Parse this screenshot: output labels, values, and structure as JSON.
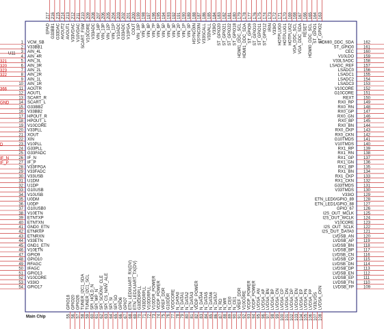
{
  "refdes": "U11",
  "part": "Main Chip",
  "pins": {
    "left": [
      [
        1,
        "VCM_SB"
      ],
      [
        2,
        "V33BB1"
      ],
      [
        3,
        "AIN_4L"
      ],
      [
        4,
        "AIN_4R"
      ],
      [
        5,
        "AIN_3L"
      ],
      [
        6,
        "AIN_3R"
      ],
      [
        7,
        "AIN_2L"
      ],
      [
        8,
        "AIN_2R"
      ],
      [
        9,
        "AIN_1L"
      ],
      [
        10,
        "AIN_1R"
      ],
      [
        11,
        "AOUTR"
      ],
      [
        12,
        "AOUTL"
      ],
      [
        13,
        "SCART_R"
      ],
      [
        14,
        "SCART_L"
      ],
      [
        15,
        "G33BB2"
      ],
      [
        16,
        "V33BB2"
      ],
      [
        17,
        "HPOUT_R"
      ],
      [
        18,
        "HPOUT_L"
      ],
      [
        19,
        "V10CORE"
      ],
      [
        20,
        "V33PLL"
      ],
      [
        21,
        "XOUT"
      ],
      [
        22,
        "XIN"
      ],
      [
        23,
        "V10PLL"
      ],
      [
        24,
        "G33PLL"
      ],
      [
        25,
        "G33FADC"
      ],
      [
        26,
        "IF_N"
      ],
      [
        27,
        "IF_P"
      ],
      [
        28,
        "V33FPGA"
      ],
      [
        29,
        "V33FADC"
      ],
      [
        30,
        "V33USB"
      ],
      [
        31,
        "U1DM"
      ],
      [
        32,
        "U1DP"
      ],
      [
        33,
        "G10USB"
      ],
      [
        34,
        "V10USB"
      ],
      [
        35,
        "U0DM"
      ],
      [
        36,
        "U0DP"
      ],
      [
        37,
        "G10USB0"
      ],
      [
        38,
        "V10ETN"
      ],
      [
        39,
        "ETNTXP"
      ],
      [
        40,
        "ETNTXN"
      ],
      [
        41,
        "GND0_ETN"
      ],
      [
        42,
        "ETNRXP"
      ],
      [
        43,
        "ETNRXN"
      ],
      [
        44,
        "V33ETN"
      ],
      [
        45,
        "GND1_ETN"
      ],
      [
        46,
        "V10ETN"
      ],
      [
        47,
        "GPIO9"
      ],
      [
        48,
        "GPIO10"
      ],
      [
        49,
        "RFAGC"
      ],
      [
        50,
        "IFAGC"
      ],
      [
        51,
        "GPIO13"
      ],
      [
        52,
        "V10CORE"
      ],
      [
        53,
        "V33IO"
      ],
      [
        54,
        "GPIO17"
      ]
    ],
    "bottom": [
      [
        55,
        "GPIO18"
      ],
      [
        56,
        "GPIO20"
      ],
      [
        57,
        "GPIO26"
      ],
      [
        58,
        "TUNER_I2C1_SDA"
      ],
      [
        59,
        "TUNER_I2C1_SCL"
      ],
      [
        60,
        "SPI_HOLD_N"
      ],
      [
        61,
        "SPI_WP_N"
      ],
      [
        62,
        "SPI_SCK/NV_CLE"
      ],
      [
        63,
        "SPI_CS_N/NV_ALE"
      ],
      [
        64,
        "SPI_SI"
      ],
      [
        65,
        "SPI_SO"
      ],
      [
        66,
        "GPIO6"
      ],
      [
        67,
        "GPIO7"
      ],
      [
        68,
        "ETN_LED0/UART_RX(DV)"
      ],
      [
        69,
        "ETN_LED1/UART_TX(DV)"
      ],
      [
        70,
        "G33DDRPLL"
      ],
      [
        71,
        "V33DDRPLL"
      ],
      [
        72,
        "V10DDRPLL"
      ],
      [
        73,
        "V10DDR_POWER"
      ],
      [
        74,
        "VDDP_POWER"
      ],
      [
        75,
        "VREF_DDR"
      ],
      [
        76,
        "G10DDR"
      ],
      [
        77,
        "VDDCORE"
      ],
      [
        78,
        "N_DATA0"
      ],
      [
        79,
        "N_DATA1"
      ],
      [
        80,
        "N_DATA2"
      ],
      [
        81,
        "N_DATA3"
      ],
      [
        82,
        "VDDP_POWER"
      ],
      [
        83,
        "N_DATA4"
      ],
      [
        84,
        "N_DATA5"
      ],
      [
        85,
        "N_DATA6"
      ],
      [
        86,
        "N_DATA7"
      ],
      [
        87,
        "N_RD"
      ],
      [
        88,
        "N_WR"
      ],
      [
        89,
        "N_CE0"
      ],
      [
        90,
        "N_CE1"
      ],
      [
        91,
        "VREF_DDR"
      ],
      [
        92,
        "V10CORE"
      ],
      [
        93,
        "VDDP_POWER"
      ],
      [
        94,
        "VDDP_POWER"
      ],
      [
        95,
        "LVDSA_AN"
      ],
      [
        96,
        "LVDSA_AP"
      ],
      [
        97,
        "LVDSA_BN"
      ],
      [
        98,
        "LVDSA_BP"
      ],
      [
        99,
        "LVDSA_CN"
      ],
      [
        100,
        "LVDSA_CP"
      ],
      [
        101,
        "LVDSA_DN"
      ],
      [
        102,
        "LVDSA_DP"
      ],
      [
        103,
        "LVDSA_EN"
      ],
      [
        104,
        "LVDSA_EP"
      ],
      [
        105,
        "LVDSA_FN"
      ],
      [
        106,
        "LVDSA_FP"
      ],
      [
        107,
        "V33LVDS"
      ],
      [
        108,
        "LVDSA_CKN"
      ]
    ],
    "right": [
      [
        162,
        "HDMI0_DDC_SDA"
      ],
      [
        161,
        "ST_GPIO0"
      ],
      [
        160,
        "CEC"
      ],
      [
        159,
        "V10LDO"
      ],
      [
        158,
        "V33LSADC"
      ],
      [
        157,
        "LSADC_REF"
      ],
      [
        156,
        "LSADC0"
      ],
      [
        155,
        "LSADC1"
      ],
      [
        154,
        "LSADC2"
      ],
      [
        153,
        "LSADC3"
      ],
      [
        152,
        "V10CORE"
      ],
      [
        151,
        "G10CORE"
      ],
      [
        150,
        "REXT"
      ],
      [
        149,
        "RX0_RP"
      ],
      [
        148,
        "RX0_RN"
      ],
      [
        147,
        "RX0_GP"
      ],
      [
        146,
        "RX0_GN"
      ],
      [
        145,
        "RX0_BP"
      ],
      [
        144,
        "RX0_BN"
      ],
      [
        143,
        "RX0_CKP"
      ],
      [
        142,
        "RX0_CKN"
      ],
      [
        141,
        "G10TMDS"
      ],
      [
        140,
        "V10TMDS"
      ],
      [
        139,
        "RX1_RP"
      ],
      [
        138,
        "RX1_RN"
      ],
      [
        137,
        "RX1_GP"
      ],
      [
        136,
        "RX1_GN"
      ],
      [
        135,
        "RX1_BP"
      ],
      [
        134,
        "RX1_BN"
      ],
      [
        133,
        "RX1_CKP"
      ],
      [
        132,
        "RX1_CKN"
      ],
      [
        131,
        "G33TMDS"
      ],
      [
        130,
        "V33TMDS"
      ],
      [
        129,
        "V33IO"
      ],
      [
        128,
        "ETN_LED0/GPIO_89"
      ],
      [
        127,
        "ETN_LED1/GPIO_88"
      ],
      [
        126,
        "GPIO_67"
      ],
      [
        125,
        "I2S_OUT_MCLK"
      ],
      [
        124,
        "I2S_OUT_WCLK"
      ],
      [
        123,
        "V10CORE"
      ],
      [
        122,
        "I2S_OUT_SCLK"
      ],
      [
        121,
        "I2S_OUT_DATA0"
      ],
      [
        120,
        "LVDSB_AN"
      ],
      [
        119,
        "LVDSB_AP"
      ],
      [
        118,
        "LVDSB_BN"
      ],
      [
        117,
        "LVDSB_BP"
      ],
      [
        116,
        "LVDSB_CN"
      ],
      [
        115,
        "LVDSB_CP"
      ],
      [
        114,
        "LVDSB_DN"
      ],
      [
        113,
        "LVDSB_DP"
      ],
      [
        112,
        "LVDSB_EN"
      ],
      [
        111,
        "LVDSB_EP"
      ],
      [
        110,
        "LVDSB_FN"
      ],
      [
        109,
        "LVDSB_FP"
      ]
    ],
    "top": [
      [
        217,
        "EPAD"
      ],
      [
        216,
        "G33BB1"
      ],
      [
        215,
        "G33DAC"
      ],
      [
        214,
        "AVOUT2"
      ],
      [
        213,
        "AVOUT1"
      ],
      [
        212,
        "V33VDAC"
      ],
      [
        211,
        "V10VDAC"
      ],
      [
        210,
        "SCART_FSW"
      ],
      [
        209,
        "V10CORE"
      ],
      [
        208,
        "V33ADC"
      ],
      [
        207,
        "VIN_14P"
      ],
      [
        206,
        "VIN_13P"
      ],
      [
        205,
        "VIN_12P"
      ],
      [
        204,
        "VIN_11P"
      ],
      [
        203,
        "V10ADC"
      ],
      [
        202,
        "G33ADC"
      ],
      [
        201,
        "V10PGA"
      ],
      [
        200,
        "COUT"
      ],
      [
        199,
        "VIN_10P"
      ],
      [
        198,
        "VIN_9P"
      ],
      [
        197,
        "VIN_8P"
      ],
      [
        196,
        "VIN_7P"
      ],
      [
        195,
        "VIN_6P"
      ],
      [
        194,
        "VIN_5P"
      ],
      [
        193,
        "VIN_4P"
      ],
      [
        192,
        "VIN_3P"
      ],
      [
        191,
        "VIN_2P"
      ],
      [
        190,
        "VIN_1P"
      ],
      [
        189,
        "VIN_0P"
      ],
      [
        188,
        "HSYNC0IN"
      ],
      [
        187,
        "VSYNC0IN"
      ],
      [
        186,
        "V33SCALL"
      ],
      [
        185,
        "V33VALL"
      ],
      [
        184,
        "V33IO"
      ],
      [
        183,
        "ST_GPIO20"
      ],
      [
        182,
        "ST_GPIO21"
      ],
      [
        181,
        "ST_GPIO22"
      ],
      [
        180,
        "ST_GPIO18"
      ],
      [
        179,
        "HDMI1_DDC_SCL"
      ],
      [
        178,
        "HDMI1_DDC_SDA"
      ],
      [
        177,
        "ST_GPIO9"
      ],
      [
        176,
        "ST_GPIO10"
      ],
      [
        175,
        "ST_GPIO11"
      ],
      [
        174,
        "ST_GPIO12"
      ],
      [
        173,
        "IRIN"
      ],
      [
        172,
        "V33IO"
      ],
      [
        171,
        "HOTPLUG0"
      ],
      [
        170,
        "HOTPLUG1"
      ],
      [
        169,
        "HOTPLUG2"
      ],
      [
        168,
        "VGA_DDC_SCL"
      ],
      [
        167,
        "VGA_DDC_SDA"
      ],
      [
        166,
        "RESET"
      ],
      [
        165,
        "HDMI0_DDC_SCL"
      ],
      [
        164,
        "ST_GPIO1"
      ],
      [
        163,
        "ST_GPIO2"
      ]
    ]
  },
  "nets": [
    "321",
    "320",
    "323",
    "322",
    "366",
    "GND",
    "D",
    "IF_N",
    "IF_P"
  ]
}
